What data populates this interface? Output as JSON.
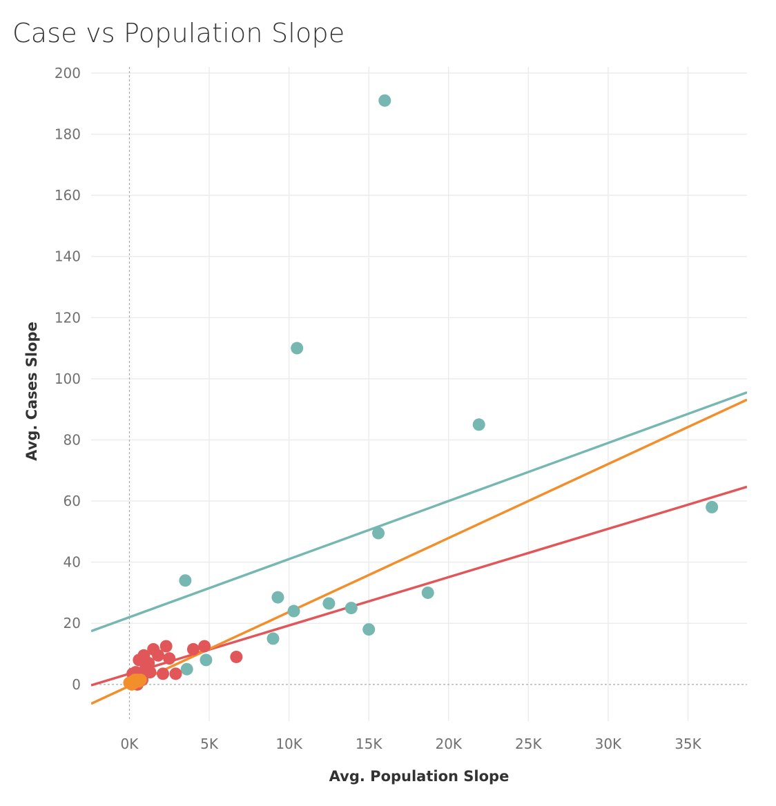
{
  "chart_data": {
    "type": "scatter",
    "title": "Case vs Population Slope",
    "xlabel": "Avg. Population Slope",
    "ylabel": "Avg. Cases Slope",
    "xlim": [
      -2400,
      38700
    ],
    "ylim": [
      -12,
      202
    ],
    "x_ticks": [
      {
        "value": 0,
        "label": "0K"
      },
      {
        "value": 5000,
        "label": "5K"
      },
      {
        "value": 10000,
        "label": "10K"
      },
      {
        "value": 15000,
        "label": "15K"
      },
      {
        "value": 20000,
        "label": "20K"
      },
      {
        "value": 25000,
        "label": "25K"
      },
      {
        "value": 30000,
        "label": "30K"
      },
      {
        "value": 35000,
        "label": "35K"
      }
    ],
    "y_ticks": [
      {
        "value": 0,
        "label": "0"
      },
      {
        "value": 20,
        "label": "20"
      },
      {
        "value": 40,
        "label": "40"
      },
      {
        "value": 60,
        "label": "60"
      },
      {
        "value": 80,
        "label": "80"
      },
      {
        "value": 100,
        "label": "100"
      },
      {
        "value": 120,
        "label": "120"
      },
      {
        "value": 140,
        "label": "140"
      },
      {
        "value": 160,
        "label": "160"
      },
      {
        "value": 180,
        "label": "180"
      },
      {
        "value": 200,
        "label": "200"
      }
    ],
    "grid": true,
    "legend": "none",
    "series": [
      {
        "color": "#76b7b2",
        "points": [
          [
            16000,
            191
          ],
          [
            10500,
            110
          ],
          [
            21900,
            85
          ],
          [
            36500,
            58
          ],
          [
            15600,
            49.5
          ],
          [
            3500,
            34
          ],
          [
            18700,
            30
          ],
          [
            9300,
            28.5
          ],
          [
            12500,
            26.5
          ],
          [
            13900,
            25
          ],
          [
            10300,
            24
          ],
          [
            15000,
            18
          ],
          [
            9000,
            15
          ],
          [
            4800,
            8
          ],
          [
            3600,
            5
          ]
        ],
        "trend": {
          "slope": 0.0019,
          "intercept": 22
        }
      },
      {
        "color": "#e15759",
        "points": [
          [
            6700,
            9
          ],
          [
            4700,
            12.5
          ],
          [
            4000,
            11.5
          ],
          [
            2300,
            12.5
          ],
          [
            1500,
            11.5
          ],
          [
            2500,
            8.5
          ],
          [
            900,
            9.5
          ],
          [
            600,
            8
          ],
          [
            1800,
            9.5
          ],
          [
            1200,
            7
          ],
          [
            1000,
            5
          ],
          [
            400,
            4
          ],
          [
            700,
            3
          ],
          [
            2100,
            3.5
          ],
          [
            2900,
            3.5
          ],
          [
            1300,
            4
          ],
          [
            800,
            1.5
          ],
          [
            200,
            3.5
          ],
          [
            500,
            0
          ]
        ],
        "trend": {
          "slope": 0.00158,
          "intercept": 3.5
        }
      },
      {
        "color": "#f28e2b",
        "points": [
          [
            0,
            0.5
          ],
          [
            100,
            0.5
          ],
          [
            200,
            1
          ],
          [
            300,
            0.5
          ],
          [
            400,
            1
          ],
          [
            500,
            1.5
          ],
          [
            600,
            1
          ],
          [
            700,
            1.5
          ],
          [
            150,
            0
          ],
          [
            250,
            0.5
          ],
          [
            350,
            1.5
          ]
        ],
        "trend": {
          "slope": 0.00242,
          "intercept": -0.5
        }
      }
    ]
  }
}
